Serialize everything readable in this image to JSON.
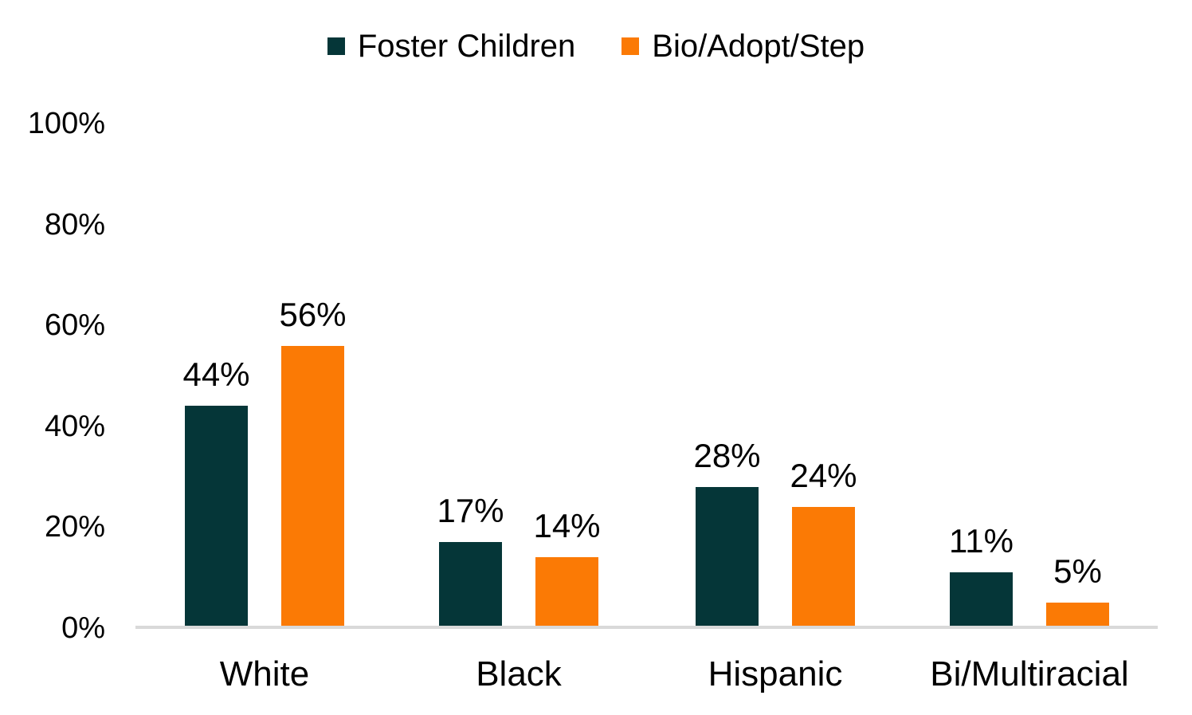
{
  "chart_data": {
    "type": "bar",
    "title": "",
    "categories": [
      "White",
      "Black",
      "Hispanic",
      "Bi/Multiracial"
    ],
    "series": [
      {
        "name": "Foster Children",
        "color": "#053638",
        "values": [
          44,
          17,
          28,
          11
        ]
      },
      {
        "name": "Bio/Adopt/Step",
        "color": "#FB7A05",
        "values": [
          56,
          14,
          24,
          5
        ]
      }
    ],
    "data_labels": [
      [
        "44%",
        "17%",
        "28%",
        "11%"
      ],
      [
        "56%",
        "14%",
        "24%",
        "5%"
      ]
    ],
    "xlabel": "",
    "ylabel": "",
    "ylim": [
      0,
      100
    ],
    "yticks": [
      0,
      20,
      40,
      60,
      80,
      100
    ],
    "ytick_labels": [
      "0%",
      "20%",
      "40%",
      "60%",
      "80%",
      "100%"
    ],
    "legend_position": "top-center",
    "grid": false,
    "axis_line_color": "#d9d9d9",
    "text_color": "#000000",
    "background_color": "#ffffff"
  }
}
